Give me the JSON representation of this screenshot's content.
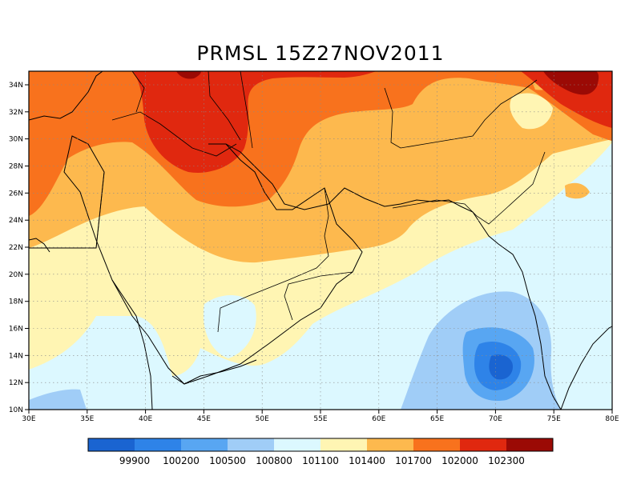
{
  "title": "PRMSL 15Z27NOV2011",
  "map": {
    "lon_range": [
      30,
      80
    ],
    "lat_range": [
      10,
      35
    ],
    "lon_ticks": [
      "30E",
      "35E",
      "40E",
      "45E",
      "50E",
      "55E",
      "60E",
      "65E",
      "70E",
      "75E",
      "80E"
    ],
    "lat_ticks": [
      "10N",
      "12N",
      "14N",
      "16N",
      "18N",
      "20N",
      "22N",
      "24N",
      "26N",
      "28N",
      "30N",
      "32N",
      "34N"
    ],
    "grid": "dotted",
    "field_min_center": {
      "lon": 70.5,
      "lat": 13.3
    },
    "field_max_region": "northern Iraq / western Iran"
  },
  "colorbar": {
    "colors": [
      "#1a64d1",
      "#2e83e8",
      "#58a6f2",
      "#a0cdf7",
      "#dcf8ff",
      "#fff5b3",
      "#fdb94e",
      "#f8721d",
      "#e0280f",
      "#9b0a05"
    ],
    "labels": [
      "99900",
      "100200",
      "100500",
      "100800",
      "101100",
      "101400",
      "101700",
      "102000",
      "102300"
    ]
  }
}
